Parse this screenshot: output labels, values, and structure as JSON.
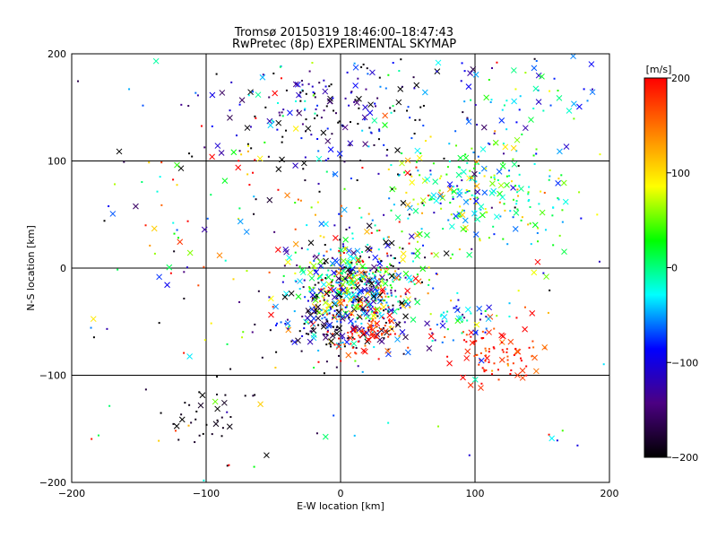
{
  "chart_data": {
    "type": "scatter",
    "title": "Tromsø 20150319 18:46:00–18:47:43",
    "subtitle": "RwPretec (8p) EXPERIMENTAL SKYMAP",
    "xlabel": "E-W location [km]",
    "ylabel": "N-S location [km]",
    "xlim": [
      -200,
      200
    ],
    "ylim": [
      -200,
      200
    ],
    "x_ticks": [
      "−200",
      "−100",
      "0",
      "100",
      "200"
    ],
    "y_ticks": [
      "−200",
      "−100",
      "0",
      "100",
      "200"
    ],
    "grid": true,
    "grid_step": 100,
    "markers": [
      "cross",
      "dot"
    ],
    "color_by": "Doppler velocity",
    "colorbar": {
      "label": "[m/s]",
      "min": -200,
      "max": 200,
      "ticks": [
        "−200",
        "−100",
        "0",
        "100",
        "200"
      ],
      "colors": [
        "#000000",
        "#4b0082",
        "#0000ff",
        "#00ffff",
        "#00ff00",
        "#ffff00",
        "#ff8000",
        "#ff0000"
      ]
    },
    "clusters": [
      {
        "x": 10,
        "y": -20,
        "sx": 22,
        "sy": 18,
        "n": 520,
        "v_mean": 0,
        "v_sd": 140
      },
      {
        "x": 0,
        "y": -55,
        "sx": 28,
        "sy": 15,
        "n": 160,
        "v_mean": -140,
        "v_sd": 70
      },
      {
        "x": 20,
        "y": -65,
        "sx": 14,
        "sy": 10,
        "n": 60,
        "v_mean": 185,
        "v_sd": 25
      },
      {
        "x": 100,
        "y": 70,
        "sx": 38,
        "sy": 25,
        "n": 240,
        "v_mean": 20,
        "v_sd": 60
      },
      {
        "x": 0,
        "y": 150,
        "sx": 45,
        "sy": 30,
        "n": 220,
        "v_mean": -130,
        "v_sd": 70
      },
      {
        "x": 140,
        "y": 170,
        "sx": 30,
        "sy": 25,
        "n": 60,
        "v_mean": -60,
        "v_sd": 60
      },
      {
        "x": 110,
        "y": -80,
        "sx": 18,
        "sy": 14,
        "n": 90,
        "v_mean": 190,
        "v_sd": 25
      },
      {
        "x": 90,
        "y": -45,
        "sx": 15,
        "sy": 10,
        "n": 45,
        "v_mean": -40,
        "v_sd": 60
      },
      {
        "x": -95,
        "y": -140,
        "sx": 22,
        "sy": 25,
        "n": 40,
        "v_mean": -195,
        "v_sd": 10
      },
      {
        "x": -90,
        "y": 80,
        "sx": 55,
        "sy": 55,
        "n": 90,
        "v_mean": 0,
        "v_sd": 150
      },
      {
        "x": 30,
        "y": 20,
        "sx": 30,
        "sy": 20,
        "n": 80,
        "v_mean": -40,
        "v_sd": 120
      },
      {
        "x": 0,
        "y": 0,
        "sx": 150,
        "sy": 120,
        "n": 200,
        "v_mean": 0,
        "v_sd": 150
      }
    ]
  }
}
